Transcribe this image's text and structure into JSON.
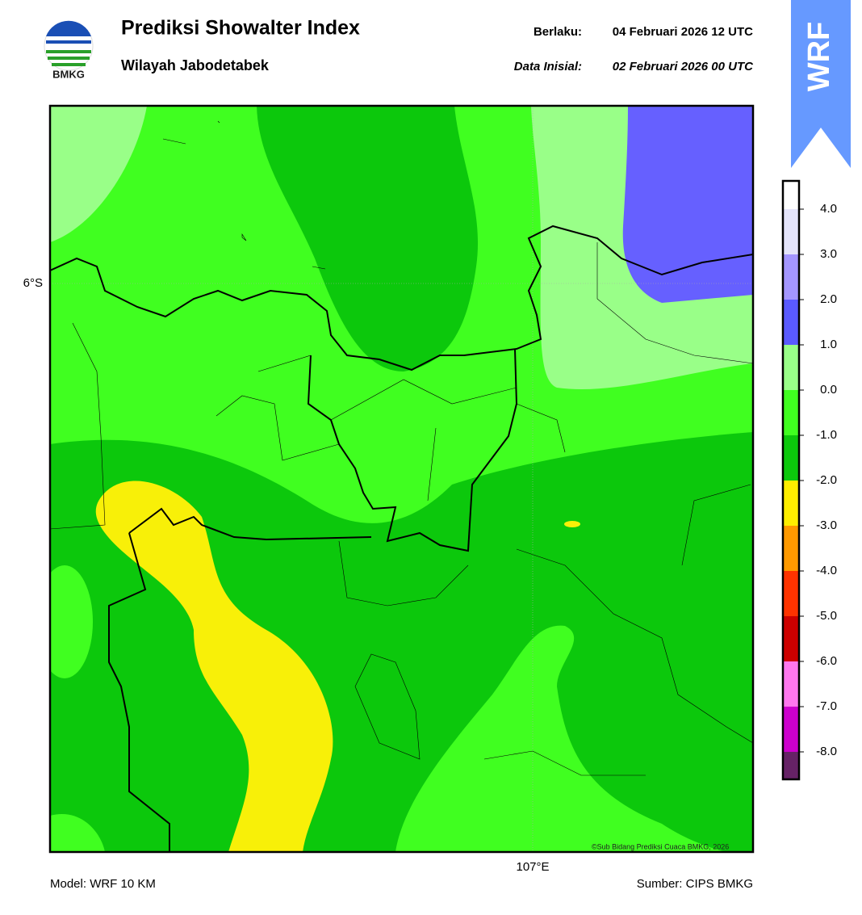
{
  "header": {
    "logo_text": "BMKG",
    "title": "Prediksi Showalter Index",
    "subtitle": "Wilayah Jabodetabek",
    "valid_label": "Berlaku:",
    "valid_time": "04 Februari 2026 12 UTC",
    "init_label": "Data Inisial:",
    "init_time": "02 Februari 2026 00 UTC",
    "badge": "WRF"
  },
  "map": {
    "lat_label": "6°S",
    "lon_label": "107°E",
    "copyright": "©Sub Bidang Prediksi Cuaca BMKG, 2026"
  },
  "colorbar": {
    "labels": [
      "4.0",
      "3.0",
      "2.0",
      "1.0",
      "0.0",
      "-1.0",
      "-2.0",
      "-3.0",
      "-4.0",
      "-5.0",
      "-6.0",
      "-7.0",
      "-8.0"
    ]
  },
  "footer": {
    "model": "Model: WRF 10 KM",
    "source": "Sumber: CIPS BMKG"
  }
}
